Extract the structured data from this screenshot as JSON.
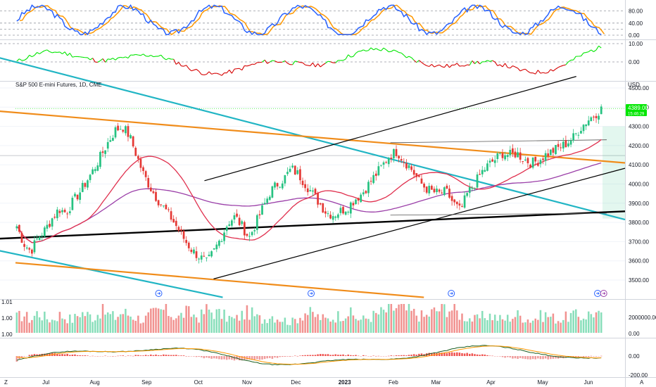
{
  "chart_data": {
    "type": "candlestick",
    "symbol_title": "S&P 500 E-mini Futures, 1D, CME",
    "currency": "USD",
    "x_tick_labels": [
      "Jul",
      "Aug",
      "Sep",
      "Oct",
      "Nov",
      "Dec",
      "2023",
      "Feb",
      "Mar",
      "Apr",
      "May",
      "Jun"
    ],
    "price_axis": {
      "ticks": [
        4500,
        4400,
        4300,
        4200,
        4100,
        4000,
        3900,
        3800,
        3700,
        3600,
        3500
      ],
      "tick_labels": [
        "4500.00",
        "4400.00",
        "4300.00",
        "4200.00",
        "4100.00",
        "4000.00",
        "3900.00",
        "3800.00",
        "3700.00",
        "3600.00",
        "3500.00"
      ],
      "ylim": [
        3450,
        4550
      ],
      "last_price_label": "4389.00",
      "last_price_sub": "15:46:29"
    },
    "stoch_axis": {
      "tick_labels": [
        "80.00",
        "40.00",
        "0.00"
      ],
      "ticks": [
        80,
        40,
        0
      ],
      "ylim": [
        -10,
        105
      ]
    },
    "momentum_axis": {
      "tick_labels": [
        "10.00",
        "0.00"
      ],
      "ticks": [
        10,
        0
      ],
      "ylim": [
        -7,
        14
      ]
    },
    "volume_axis": {
      "tick_labels": [
        "2000000.00",
        "0.00"
      ],
      "ticks": [
        2000000,
        0
      ],
      "left_labels": [
        "1.01",
        "1.00",
        "1.00"
      ]
    },
    "macd_axis": {
      "tick_labels": [
        "0.00",
        "-200.00"
      ],
      "ticks": [
        0,
        -200
      ],
      "ylim": [
        -260,
        170
      ]
    },
    "price_path": [
      3780,
      3690,
      3650,
      3720,
      3760,
      3820,
      3870,
      3850,
      3910,
      3960,
      4020,
      4080,
      4150,
      4220,
      4280,
      4300,
      4250,
      4150,
      4050,
      3980,
      3920,
      3870,
      3820,
      3760,
      3700,
      3650,
      3620,
      3590,
      3650,
      3720,
      3800,
      3830,
      3780,
      3720,
      3800,
      3880,
      3960,
      4000,
      4030,
      4080,
      4050,
      4000,
      3950,
      3900,
      3850,
      3840,
      3860,
      3880,
      3920,
      3950,
      4000,
      4050,
      4100,
      4150,
      4170,
      4120,
      4080,
      4020,
      3980,
      3960,
      3950,
      3960,
      3900,
      3860,
      3950,
      4000,
      4060,
      4100,
      4130,
      4160,
      4150,
      4160,
      4130,
      4110,
      4120,
      4150,
      4170,
      4190,
      4210,
      4240,
      4290,
      4330,
      4360,
      4390
    ],
    "volume_path": [
      0.6,
      0.7,
      0.5,
      0.8,
      0.6,
      0.5,
      0.7,
      0.6,
      0.5,
      0.8,
      0.7,
      0.6,
      0.9,
      0.7,
      0.6,
      0.8,
      0.7,
      0.6,
      0.5,
      0.7,
      0.8,
      0.9,
      0.7,
      0.6,
      0.8,
      0.7,
      0.6,
      0.9,
      0.8,
      0.7,
      0.6,
      0.5,
      0.7,
      0.8,
      0.6,
      0.5,
      0.7,
      0.6,
      0.5,
      0.4,
      0.6,
      0.8,
      0.7,
      0.6,
      0.5,
      0.6,
      0.7,
      0.8,
      0.6,
      0.5,
      0.6,
      0.7,
      0.8,
      0.9,
      1.0,
      0.9,
      0.8,
      0.7,
      0.6,
      0.8,
      0.9,
      1.0,
      0.9,
      0.7,
      0.6,
      0.5,
      0.6,
      0.7,
      0.6,
      0.5,
      0.6,
      0.7,
      0.6,
      0.5,
      0.6,
      0.7,
      0.6,
      0.5,
      0.6,
      0.7,
      0.6,
      0.7,
      0.8,
      0.6
    ]
  },
  "legend": {
    "symbol_title": "S&P 500 E-mini Futures, 1D, CME",
    "currency": "USD"
  },
  "bottom_bar": {
    "left_icon_letter": "Z",
    "right_icon_letter": "A"
  },
  "colors": {
    "up": "#26c281",
    "down": "#e53935",
    "teal_line": "#21b5c4",
    "orange_line": "#f08c1a",
    "purple_ma": "#9b3fa8",
    "red_ma": "#e0304e",
    "stoch_k": "#2962ff",
    "stoch_d": "#ff9800",
    "momentum_up": "#00e600",
    "momentum_down": "#d50000",
    "price_tag_bg": "#00e600"
  }
}
